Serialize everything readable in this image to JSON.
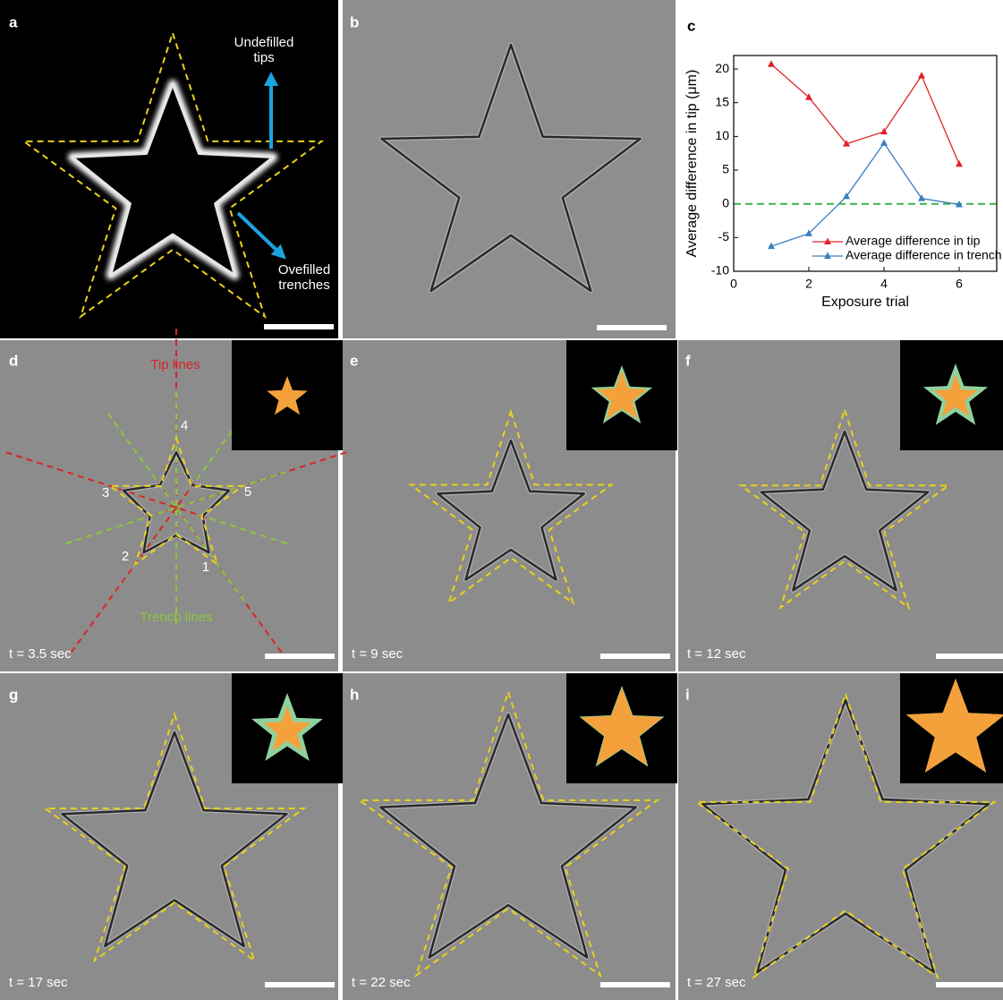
{
  "panel_labels": [
    "a",
    "b",
    "c",
    "d",
    "e",
    "f",
    "g",
    "h",
    "i"
  ],
  "panel_a": {
    "annotation_tips": [
      "Undefilled",
      "tips"
    ],
    "annotation_trenches": [
      "Ovefilled",
      "trenches"
    ]
  },
  "panel_d": {
    "tip_lines": "Tip lines",
    "trench_lines": "Trench lines",
    "tip_numbers": [
      1,
      2,
      3,
      4,
      5
    ]
  },
  "time_labels": [
    "t = 3.5 sec",
    "t = 9 sec",
    "t = 12 sec",
    "t = 17 sec",
    "t = 22 sec",
    "t = 27 sec"
  ],
  "chart_data": {
    "type": "line",
    "x_label": "Exposure trial",
    "y_label": "Average difference in tip (μm)",
    "x": [
      1,
      2,
      3,
      4,
      5,
      6
    ],
    "series": [
      {
        "name": "Average difference in tip",
        "color": "#e0232a",
        "values": [
          20.7,
          15.8,
          8.9,
          10.7,
          19.0,
          5.9
        ]
      },
      {
        "name": "Average difference in trench",
        "color": "#3a7fc0",
        "values": [
          -6.3,
          -4.4,
          1.1,
          9.0,
          0.8,
          -0.1
        ]
      }
    ],
    "reference_line": {
      "y": 0,
      "color": "#3cb44a"
    },
    "xlim": [
      0,
      7
    ],
    "xticks": [
      0,
      2,
      4,
      6
    ],
    "ylim": [
      -10,
      22
    ],
    "yticks": [
      -10,
      -5,
      0,
      5,
      10,
      15,
      20
    ],
    "legend": "lower right"
  }
}
